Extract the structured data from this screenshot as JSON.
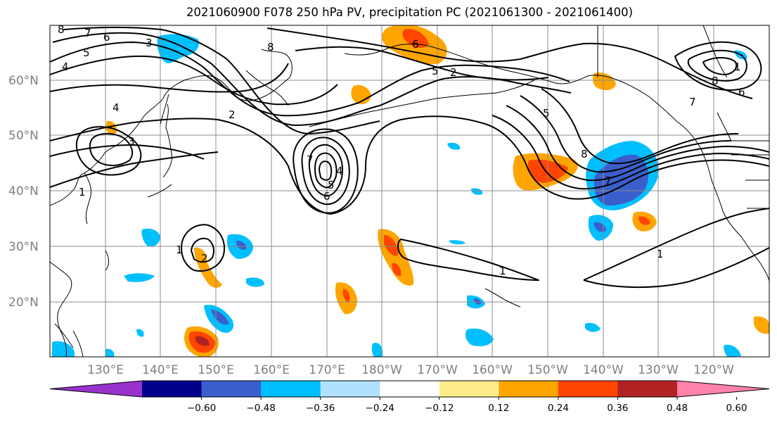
{
  "title": "2021060900 F078 250 hPa PV, precipitation PC (2021061300 - 2021061400)",
  "map": {
    "lat_labels": [
      "60°N",
      "50°N",
      "40°N",
      "30°N",
      "20°N"
    ],
    "lon_labels": [
      "130°E",
      "140°E",
      "150°E",
      "160°E",
      "170°E",
      "180°W",
      "170°W",
      "160°W",
      "150°W",
      "140°W",
      "130°W",
      "120°W"
    ]
  },
  "contour_labels": {
    "pv": [
      "8",
      "7",
      "6",
      "5",
      "4",
      "3",
      "8",
      "2",
      "6",
      "5",
      "4",
      "3",
      "2",
      "1",
      "7",
      "6",
      "5",
      "4",
      "1",
      "2",
      "1",
      "5",
      "8",
      "7",
      "1",
      "8",
      "7",
      "6",
      "1"
    ]
  },
  "colorbar": {
    "ticks": [
      "−0.60",
      "−0.48",
      "−0.36",
      "−0.24",
      "−0.12",
      "0.12",
      "0.24",
      "0.36",
      "0.48",
      "0.60"
    ],
    "colors": [
      "#9932cc",
      "#00008b",
      "#3a5fcd",
      "#00bfff",
      "#b0e2ff",
      "#ffffff",
      "#ffec8b",
      "#ffa500",
      "#ff4500",
      "#b22222",
      "#ff82ab"
    ]
  }
}
